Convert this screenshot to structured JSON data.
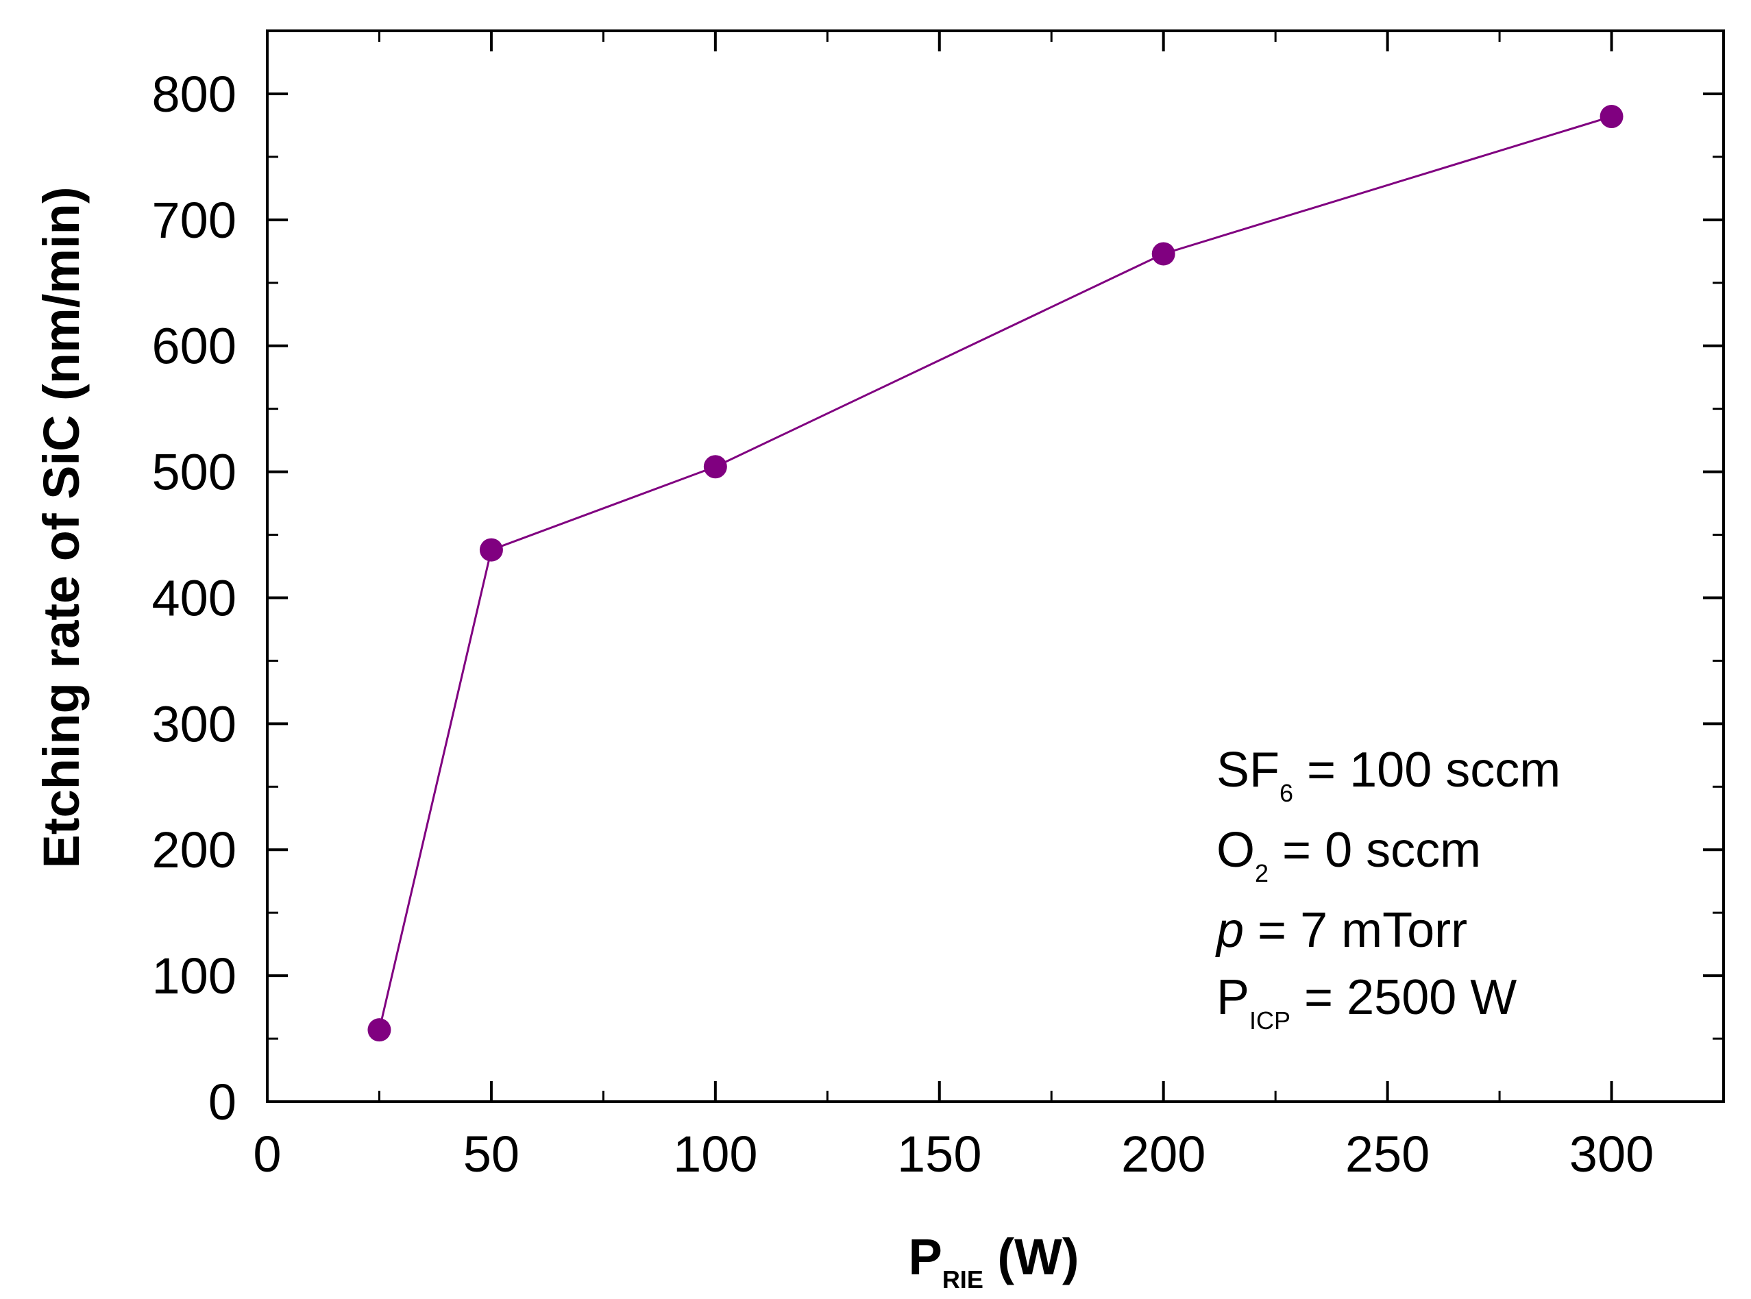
{
  "chart_data": {
    "type": "line",
    "title": "",
    "xlabel": {
      "main": "P",
      "sub": "RIE",
      "rest": " (W)"
    },
    "ylabel": "Etching rate of SiC (nm/min)",
    "xlim": [
      0,
      325
    ],
    "ylim": [
      0,
      850
    ],
    "xticks": [
      0,
      50,
      100,
      150,
      200,
      250,
      300
    ],
    "yticks": [
      0,
      100,
      200,
      300,
      400,
      500,
      600,
      700,
      800
    ],
    "x_minor_step": 25,
    "y_minor_step": 50,
    "grid": false,
    "series": [
      {
        "name": "Etching rate",
        "color": "#800080",
        "marker": "circle",
        "x": [
          25,
          50,
          100,
          200,
          300
        ],
        "y": [
          57,
          438,
          504,
          673,
          782
        ]
      }
    ],
    "annotations": [
      {
        "main": "SF",
        "sub": "6",
        "rest": " = 100 sccm",
        "italic": false
      },
      {
        "main": "O",
        "sub": "2",
        "rest": " = 0 sccm",
        "italic": false
      },
      {
        "main": "p",
        "sub": "",
        "rest": " = 7 mTorr",
        "italic": true
      },
      {
        "main": "P",
        "sub": "ICP",
        "rest": " = 2500 W",
        "italic": false
      }
    ]
  }
}
